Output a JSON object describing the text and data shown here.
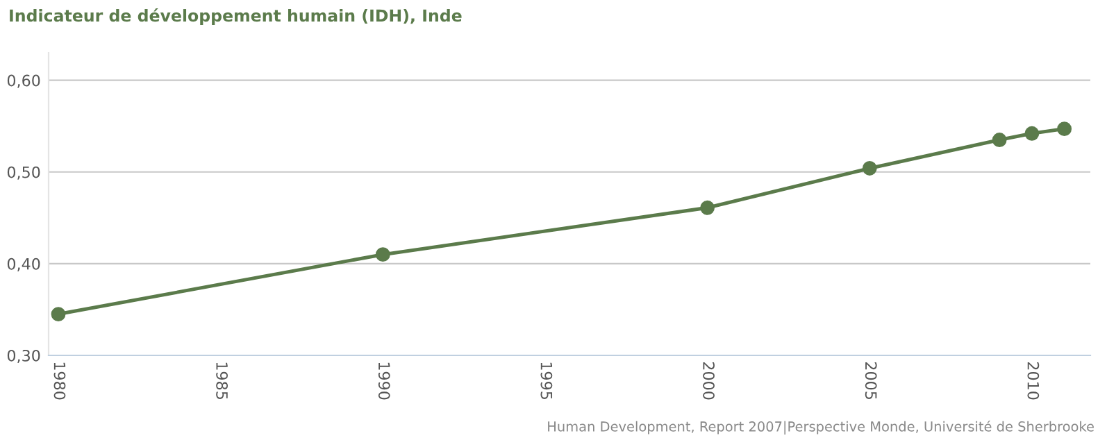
{
  "chart_data": {
    "type": "line",
    "title": "Indicateur de développement humain (IDH), Inde",
    "x": [
      1980,
      1990,
      2000,
      2005,
      2009,
      2010,
      2011
    ],
    "series": [
      {
        "color": "#5b7b4b",
        "values": [
          0.345,
          0.41,
          0.461,
          0.504,
          0.535,
          0.542,
          0.547
        ]
      }
    ],
    "xlim": [
      1979.7,
      2011.8
    ],
    "xticks": [
      1980,
      1985,
      1990,
      1995,
      2000,
      2005,
      2010
    ],
    "ylim": [
      0.3,
      0.63
    ],
    "yticks": [
      {
        "value": 0.3,
        "label": "0,30"
      },
      {
        "value": 0.4,
        "label": "0,40"
      },
      {
        "value": 0.5,
        "label": "0,50"
      },
      {
        "value": 0.6,
        "label": "0,60"
      }
    ],
    "grid": "y",
    "marker": "circle",
    "line_style": "solid",
    "legend": false,
    "annotations": [
      "Human Development, Report 2007|Perspective Monde, Université de Sherbrooke"
    ]
  }
}
